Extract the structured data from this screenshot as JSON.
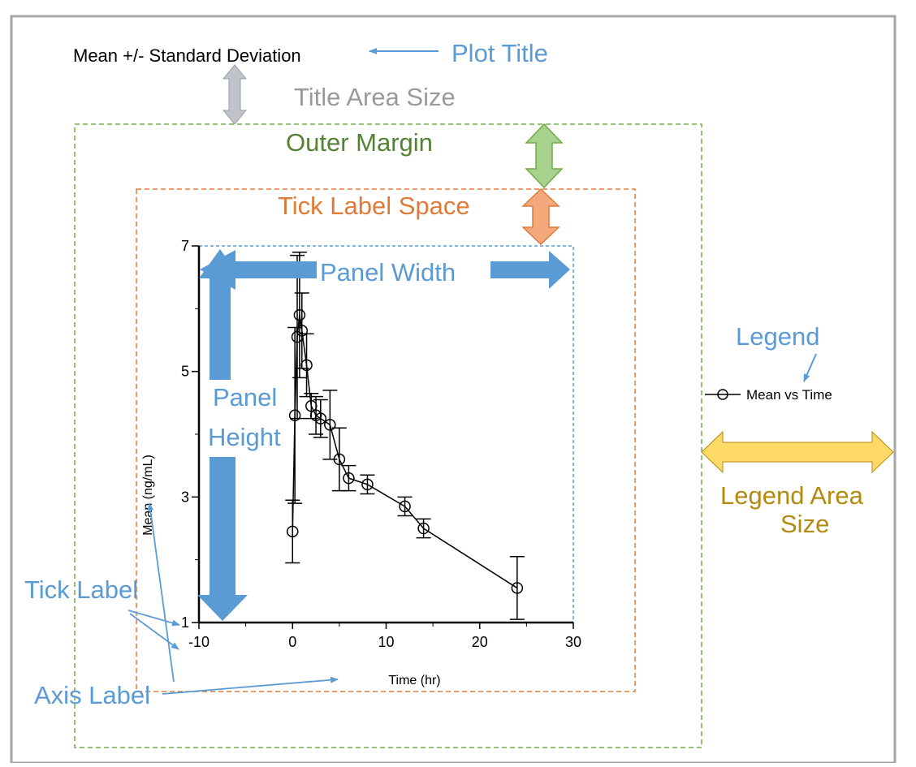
{
  "plot_title": "Mean +/- Standard Deviation",
  "annotations": {
    "plot_title": "Plot Title",
    "title_area_size": "Title Area Size",
    "outer_margin": "Outer Margin",
    "tick_label_space": "Tick Label Space",
    "panel_width": "Panel Width",
    "panel_height_line1": "Panel",
    "panel_height_line2": "Height",
    "legend": "Legend",
    "legend_area_size_line1": "Legend Area",
    "legend_area_size_line2": "Size",
    "tick_label": "Tick Label",
    "axis_label": "Axis Label"
  },
  "colors": {
    "annotation_blue": "#5b9bd5",
    "arrow_blue": "#5b9bd5",
    "gray_arrow": "#c0c4c8",
    "green": "#70ad47",
    "green_text": "#548235",
    "orange": "#f4a97c",
    "orange_text": "#e07a37",
    "yellow": "#ffd966",
    "yellow_text": "#b48a0e",
    "gray_text": "#9a9a9a",
    "frame": "#a6a6a6"
  },
  "chart_data": {
    "type": "line",
    "xlabel": "Time (hr)",
    "ylabel": "Mean (ng/mL)",
    "xlim": [
      -10,
      30
    ],
    "ylim": [
      1,
      7
    ],
    "x_ticks": [
      -10,
      0,
      10,
      20,
      30
    ],
    "y_ticks": [
      1,
      3,
      5,
      7
    ],
    "x_tick_labels": [
      "-10",
      "0",
      "10",
      "20",
      "30"
    ],
    "y_tick_labels": [
      "1",
      "3",
      "5",
      "7"
    ],
    "legend": {
      "label": "Mean vs Time",
      "placement": "right"
    },
    "series": [
      {
        "name": "Mean vs Time",
        "x": [
          0,
          0.25,
          0.5,
          0.75,
          1,
          1.5,
          2,
          2.5,
          3,
          4,
          5,
          6,
          8,
          12,
          14,
          24
        ],
        "y": [
          2.45,
          4.3,
          5.55,
          5.9,
          5.65,
          5.1,
          4.45,
          4.3,
          4.25,
          4.15,
          3.6,
          3.3,
          3.2,
          2.85,
          2.5,
          1.55
        ],
        "err": [
          0.5,
          1.4,
          1.3,
          1.0,
          0.6,
          0.5,
          0.2,
          0.3,
          0.3,
          0.55,
          0.5,
          0.2,
          0.15,
          0.15,
          0.15,
          0.5
        ]
      }
    ]
  }
}
